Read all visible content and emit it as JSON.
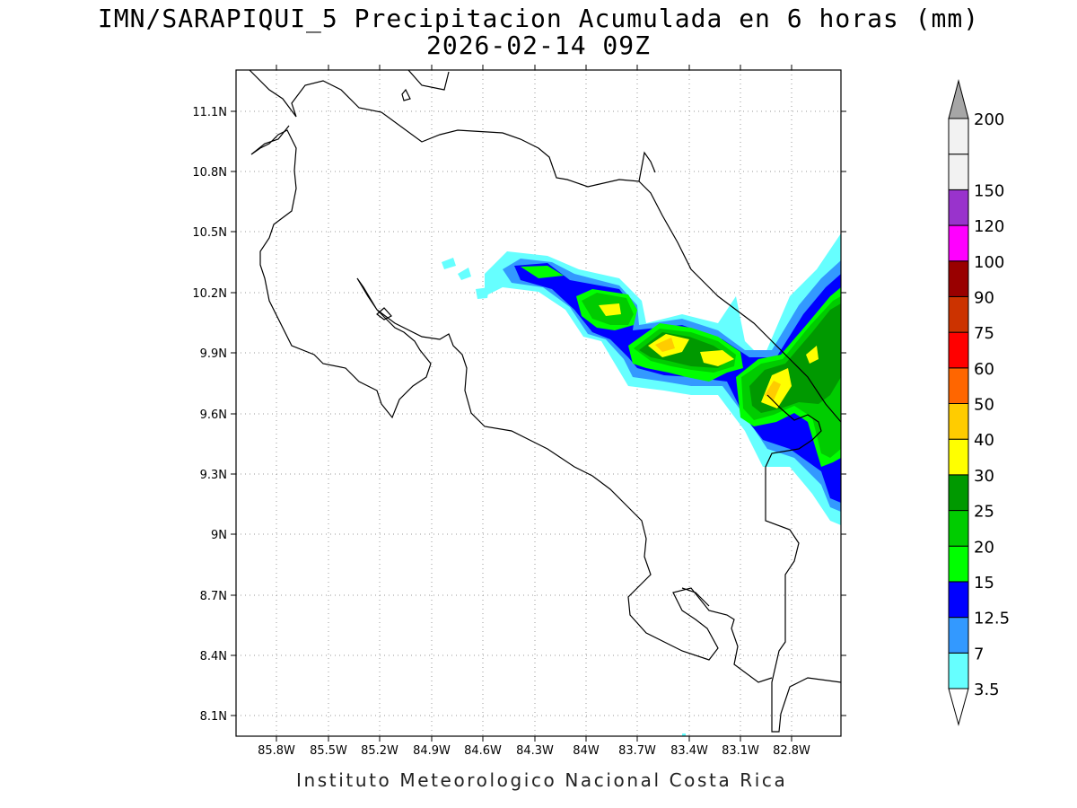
{
  "header": {
    "title": "IMN/SARAPIQUI_5 Precipitacion Acumulada en 6 horas (mm)",
    "subtitle": "2026-02-14 09Z"
  },
  "footer": {
    "credit": "Instituto Meteorologico Nacional Costa Rica"
  },
  "map": {
    "lon_range": [
      -86.0,
      -82.55
    ],
    "lat_range": [
      8.0,
      11.35
    ],
    "lon_ticks": [
      "85.8W",
      "85.5W",
      "85.2W",
      "84.9W",
      "84.6W",
      "84.3W",
      "84W",
      "83.7W",
      "83.4W",
      "83.1W",
      "82.8W"
    ],
    "lat_ticks": [
      "11.1N",
      "10.8N",
      "10.5N",
      "10.2N",
      "9.9N",
      "9.6N",
      "9.3N",
      "9N",
      "8.7N",
      "8.4N",
      "8.1N"
    ],
    "grid": "dotted",
    "boundaries": "black coastline and borders"
  },
  "legend": {
    "levels": [
      "3.5",
      "7",
      "12.5",
      "15",
      "20",
      "25",
      "30",
      "40",
      "50",
      "60",
      "75",
      "90",
      "100",
      "120",
      "150",
      "200"
    ],
    "colors": [
      "#66ffff",
      "#3399ff",
      "#0000ff",
      "#00ff00",
      "#00cc00",
      "#009900",
      "#ffff00",
      "#ffcc00",
      "#ff6600",
      "#ff0000",
      "#cc3300",
      "#990000",
      "#ff00ff",
      "#9933cc",
      "#f2f2f2",
      "#a6a6a6"
    ]
  },
  "colors": {
    "shade_lt_cyan": "#66ffff",
    "shade_blue_lt": "#3399ff",
    "shade_blue": "#0000ff",
    "shade_green_lt": "#00ff00",
    "shade_green": "#00cc00",
    "shade_green_dk": "#009900",
    "shade_yellow": "#ffff00",
    "shade_orange": "#ffcc00"
  }
}
